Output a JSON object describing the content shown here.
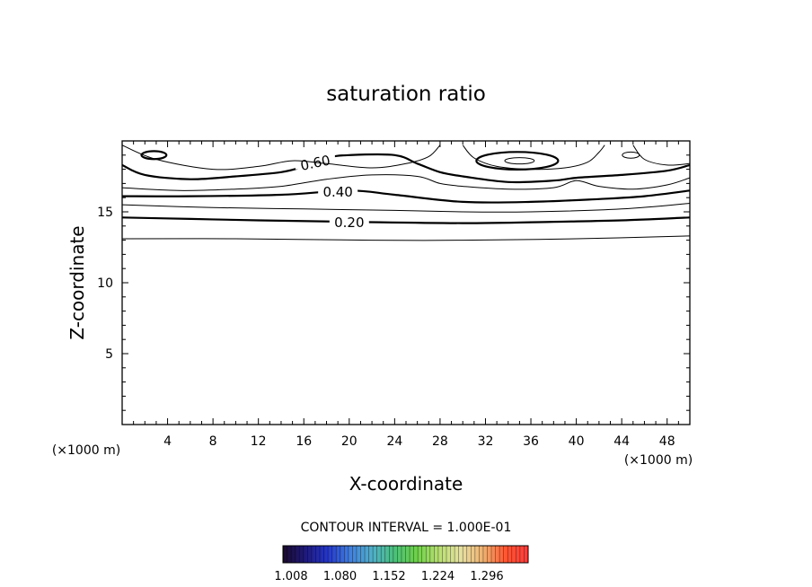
{
  "chart_data": {
    "type": "contour",
    "title": "saturation ratio",
    "xlabel": "X-coordinate",
    "ylabel": "Z-coordinate",
    "x_unit_left": "(×1000 m)",
    "x_unit_right": "(×1000 m)",
    "xlim": [
      0,
      50
    ],
    "ylim": [
      0,
      20
    ],
    "x_ticks": [
      4,
      8,
      12,
      16,
      20,
      24,
      28,
      32,
      36,
      40,
      44,
      48
    ],
    "x_tick_labels": [
      "4",
      "8",
      "12",
      "16",
      "20",
      "24",
      "28",
      "32",
      "36",
      "40",
      "44",
      "48"
    ],
    "y_ticks": [
      5,
      10,
      15
    ],
    "y_tick_labels": [
      "5",
      "10",
      "15"
    ],
    "contour_interval_text": "CONTOUR INTERVAL = 1.000E-01",
    "contours": [
      {
        "level": 0.1,
        "label": "",
        "points": [
          [
            0,
            13.1
          ],
          [
            10,
            13.1
          ],
          [
            22,
            13.0
          ],
          [
            30,
            13.0
          ],
          [
            40,
            13.1
          ],
          [
            50,
            13.3
          ]
        ]
      },
      {
        "level": 0.2,
        "label": "0.20",
        "points": [
          [
            0,
            14.6
          ],
          [
            6,
            14.5
          ],
          [
            12,
            14.4
          ],
          [
            20,
            14.3
          ],
          [
            30,
            14.2
          ],
          [
            38,
            14.3
          ],
          [
            44,
            14.4
          ],
          [
            50,
            14.6
          ]
        ]
      },
      {
        "level": 0.3,
        "label": "",
        "points": [
          [
            0,
            15.5
          ],
          [
            8,
            15.3
          ],
          [
            16,
            15.2
          ],
          [
            24,
            15.1
          ],
          [
            30,
            15.0
          ],
          [
            36,
            15.0
          ],
          [
            44,
            15.2
          ],
          [
            50,
            15.6
          ]
        ]
      },
      {
        "level": 0.4,
        "label": "0.40",
        "points": [
          [
            0,
            16.1
          ],
          [
            6,
            16.1
          ],
          [
            14,
            16.2
          ],
          [
            20,
            16.5
          ],
          [
            24,
            16.2
          ],
          [
            30,
            15.7
          ],
          [
            36,
            15.7
          ],
          [
            42,
            15.9
          ],
          [
            46,
            16.1
          ],
          [
            50,
            16.5
          ]
        ]
      },
      {
        "level": 0.5,
        "label": "",
        "points": [
          [
            0,
            16.7
          ],
          [
            5,
            16.5
          ],
          [
            10,
            16.6
          ],
          [
            14,
            16.8
          ],
          [
            18,
            17.3
          ],
          [
            22,
            17.6
          ],
          [
            26,
            17.5
          ],
          [
            28,
            17.0
          ],
          [
            30,
            16.8
          ],
          [
            34,
            16.6
          ],
          [
            38,
            16.7
          ],
          [
            40,
            17.2
          ],
          [
            42,
            16.8
          ],
          [
            45,
            16.6
          ],
          [
            48,
            16.9
          ],
          [
            50,
            17.4
          ]
        ]
      },
      {
        "level": 0.6,
        "label": "0.60",
        "points": [
          [
            0,
            18.3
          ],
          [
            2,
            17.6
          ],
          [
            6,
            17.3
          ],
          [
            10,
            17.5
          ],
          [
            14,
            17.8
          ],
          [
            16,
            18.2
          ],
          [
            18,
            18.8
          ],
          [
            20,
            19.0
          ],
          [
            24,
            19.0
          ],
          [
            26,
            18.4
          ],
          [
            28,
            17.8
          ],
          [
            30,
            17.5
          ],
          [
            34,
            17.1
          ],
          [
            38,
            17.2
          ],
          [
            40,
            17.4
          ],
          [
            44,
            17.6
          ],
          [
            48,
            17.9
          ],
          [
            50,
            18.3
          ]
        ]
      },
      {
        "level": 0.7,
        "label": "",
        "points": [
          [
            0,
            19.7
          ],
          [
            3,
            18.7
          ],
          [
            8,
            18.0
          ],
          [
            12,
            18.2
          ],
          [
            15,
            18.6
          ],
          [
            18,
            18.4
          ],
          [
            22,
            18.1
          ],
          [
            25,
            18.4
          ],
          [
            27,
            18.9
          ],
          [
            28,
            19.7
          ]
        ]
      },
      {
        "level": 0.7,
        "label": "",
        "points": [
          [
            30,
            19.7
          ],
          [
            31,
            18.8
          ],
          [
            33,
            18.2
          ],
          [
            36,
            18.0
          ],
          [
            39,
            18.1
          ],
          [
            41,
            18.5
          ],
          [
            42,
            19.2
          ],
          [
            42.5,
            19.7
          ]
        ]
      },
      {
        "level": 0.7,
        "label": "",
        "points": [
          [
            45,
            19.7
          ],
          [
            46,
            18.7
          ],
          [
            48,
            18.3
          ],
          [
            50,
            18.4
          ]
        ]
      }
    ],
    "closed_contours": [
      {
        "level": 0.8,
        "center": [
          2.8,
          19.0
        ],
        "radius": [
          1.1,
          0.28
        ],
        "thick": true
      },
      {
        "level": 0.8,
        "center": [
          34.8,
          18.6
        ],
        "radius": [
          3.6,
          0.62
        ],
        "thick": true
      },
      {
        "level": 0.9,
        "center": [
          35.0,
          18.6
        ],
        "radius": [
          1.3,
          0.22
        ],
        "thick": false
      },
      {
        "level": 0.8,
        "center": [
          44.8,
          19.0
        ],
        "radius": [
          0.75,
          0.22
        ],
        "thick": false
      }
    ],
    "colorbar": {
      "tick_labels": [
        "1.008",
        "1.080",
        "1.152",
        "1.224",
        "1.296"
      ],
      "colors": [
        "#1a0a2e",
        "#1f1a7a",
        "#2436c8",
        "#3f7fe0",
        "#4fb0c8",
        "#4cc07a",
        "#6fd04a",
        "#b8e070",
        "#e8e0a0",
        "#f0b070",
        "#ff5533",
        "#ff3b3b"
      ]
    },
    "grid": false
  }
}
